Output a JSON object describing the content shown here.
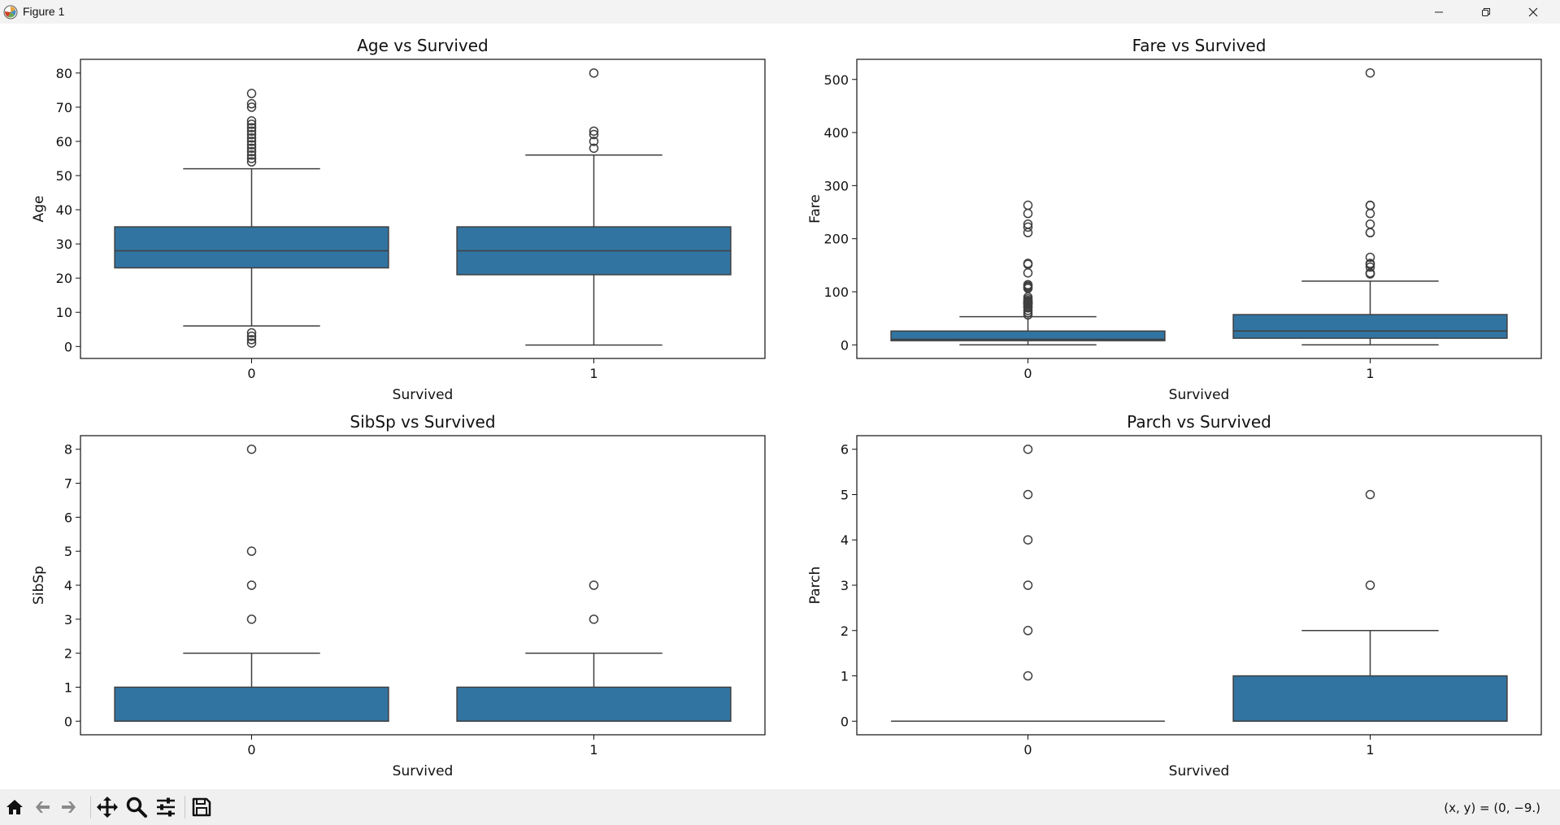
{
  "window": {
    "title": "Figure 1",
    "controls": [
      "minimize",
      "restore",
      "close"
    ]
  },
  "toolbar": {
    "buttons": [
      {
        "name": "home-icon",
        "tooltip": "Home"
      },
      {
        "name": "back-icon",
        "tooltip": "Back"
      },
      {
        "name": "forward-icon",
        "tooltip": "Forward"
      },
      {
        "name": "pan-icon",
        "tooltip": "Pan"
      },
      {
        "name": "zoom-icon",
        "tooltip": "Zoom"
      },
      {
        "name": "configure-subplots-icon",
        "tooltip": "Configure subplots"
      },
      {
        "name": "save-icon",
        "tooltip": "Save"
      }
    ],
    "coords": "(x, y) = (0, −9.)"
  },
  "colors": {
    "box_fill": "#3274a1",
    "line": "#3f3f3f"
  },
  "chart_data": [
    {
      "type": "box",
      "title": "Age vs Survived",
      "xlabel": "Survived",
      "ylabel": "Age",
      "categories": [
        "0",
        "1"
      ],
      "ylim": [
        -3.5,
        84
      ],
      "yticks": [
        0,
        10,
        20,
        30,
        40,
        50,
        60,
        70,
        80
      ],
      "boxes": [
        {
          "whislo": 6,
          "q1": 23,
          "med": 28,
          "q3": 35,
          "whishi": 52,
          "fliers": [
            1,
            2,
            3,
            4,
            54,
            55,
            56,
            57,
            58,
            59,
            60,
            61,
            62,
            63,
            64,
            65,
            66,
            70,
            71,
            74
          ]
        },
        {
          "whislo": 0.42,
          "q1": 21,
          "med": 28,
          "q3": 35,
          "whishi": 56,
          "fliers": [
            58,
            60,
            62,
            63,
            80
          ]
        }
      ]
    },
    {
      "type": "box",
      "title": "Fare vs Survived",
      "xlabel": "Survived",
      "ylabel": "Fare",
      "categories": [
        "0",
        "1"
      ],
      "ylim": [
        -25.6,
        537.9
      ],
      "yticks": [
        0,
        100,
        200,
        300,
        400,
        500
      ],
      "boxes": [
        {
          "whislo": 0,
          "q1": 7.85,
          "med": 10.5,
          "q3": 26,
          "whishi": 53.1,
          "fliers": [
            56.5,
            61,
            65,
            69.55,
            71,
            73.5,
            76.7,
            77.3,
            78.85,
            79.2,
            80,
            82.2,
            83.5,
            86.5,
            90,
            106.4,
            108.9,
            110.9,
            113.3,
            135.6,
            151.6,
            153.5,
            211.5,
            221.8,
            227.5,
            247.5,
            263
          ]
        },
        {
          "whislo": 0,
          "q1": 12.5,
          "med": 26,
          "q3": 57,
          "whishi": 120,
          "fliers": [
            133.65,
            134.5,
            135.6,
            146.5,
            151.55,
            153.46,
            164.9,
            211.3,
            211.5,
            227.5,
            247.5,
            262.4,
            263,
            512.33
          ]
        }
      ]
    },
    {
      "type": "box",
      "title": "SibSp vs Survived",
      "xlabel": "Survived",
      "ylabel": "SibSp",
      "categories": [
        "0",
        "1"
      ],
      "ylim": [
        -0.4,
        8.4
      ],
      "yticks": [
        0,
        1,
        2,
        3,
        4,
        5,
        6,
        7,
        8
      ],
      "boxes": [
        {
          "whislo": 0,
          "q1": 0,
          "med": 0,
          "q3": 1,
          "whishi": 2,
          "fliers": [
            3,
            4,
            5,
            8
          ]
        },
        {
          "whislo": 0,
          "q1": 0,
          "med": 0,
          "q3": 1,
          "whishi": 2,
          "fliers": [
            3,
            4
          ]
        }
      ]
    },
    {
      "type": "box",
      "title": "Parch vs Survived",
      "xlabel": "Survived",
      "ylabel": "Parch",
      "categories": [
        "0",
        "1"
      ],
      "ylim": [
        -0.3,
        6.3
      ],
      "yticks": [
        0,
        1,
        2,
        3,
        4,
        5,
        6
      ],
      "boxes": [
        {
          "whislo": 0,
          "q1": 0,
          "med": 0,
          "q3": 0,
          "whishi": 0,
          "fliers": [
            1,
            2,
            3,
            4,
            5,
            6
          ]
        },
        {
          "whislo": 0,
          "q1": 0,
          "med": 0,
          "q3": 1,
          "whishi": 2,
          "fliers": [
            3,
            5
          ]
        }
      ]
    }
  ]
}
